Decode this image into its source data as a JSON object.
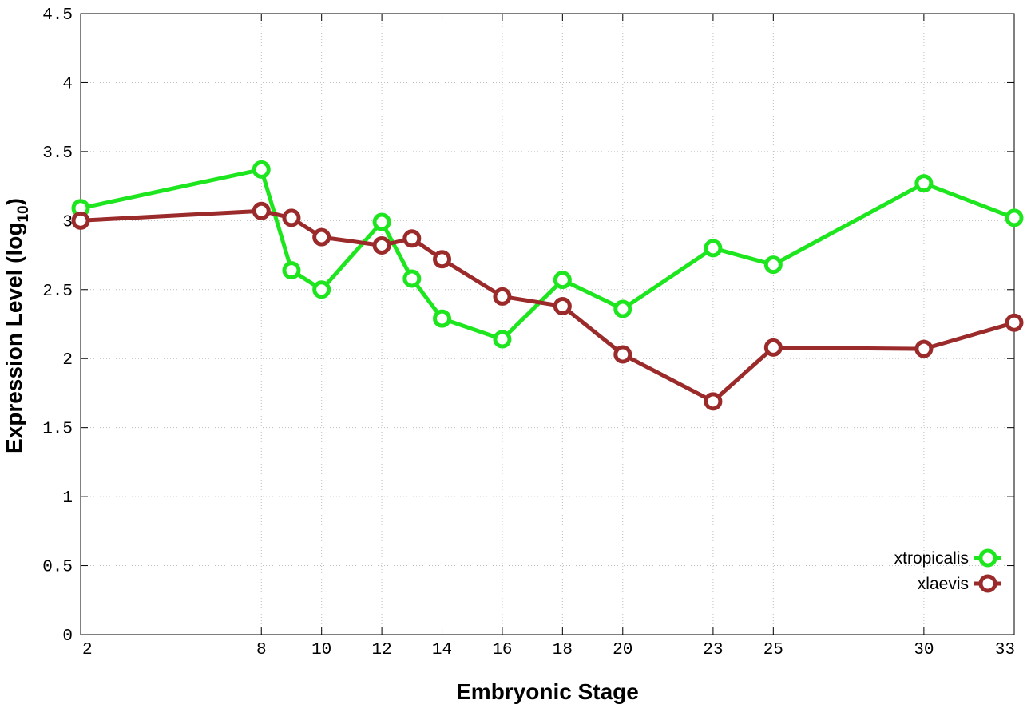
{
  "chart_data": {
    "type": "line",
    "title": "",
    "xlabel": "Embryonic Stage",
    "ylabel_main": "Expression Level (log",
    "ylabel_sub": "10",
    "ylabel_close": ")",
    "xlim": [
      2,
      33
    ],
    "ylim": [
      0,
      4.5
    ],
    "grid": true,
    "legend_position": "bottom-right",
    "x": [
      2,
      8,
      9,
      10,
      12,
      13,
      14,
      16,
      18,
      20,
      23,
      25,
      30,
      33
    ],
    "x_ticks": [
      2,
      8,
      10,
      12,
      14,
      16,
      18,
      20,
      23,
      25,
      30,
      33
    ],
    "y_ticks": [
      "0",
      "0.5",
      "1",
      "1.5",
      "2",
      "2.5",
      "3",
      "3.5",
      "4",
      "4.5"
    ],
    "series": [
      {
        "name": "xtropicalis",
        "color": "#1ee61e",
        "values": [
          3.09,
          3.37,
          2.64,
          2.5,
          2.99,
          2.58,
          2.29,
          2.14,
          2.57,
          2.36,
          2.8,
          2.68,
          3.27,
          3.02
        ]
      },
      {
        "name": "xlaevis",
        "color": "#9b2a2a",
        "values": [
          3.0,
          3.07,
          3.02,
          2.88,
          2.82,
          2.87,
          2.72,
          2.45,
          2.38,
          2.03,
          1.69,
          2.08,
          2.07,
          2.26
        ]
      }
    ]
  }
}
